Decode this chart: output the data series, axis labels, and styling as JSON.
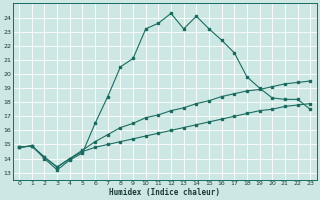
{
  "xlabel": "Humidex (Indice chaleur)",
  "bg_color": "#cde8e4",
  "grid_color": "#b0d4d0",
  "line_color": "#1a6b60",
  "xlim": [
    -0.5,
    23.5
  ],
  "ylim": [
    12.5,
    25.0
  ],
  "xticks": [
    0,
    1,
    2,
    3,
    4,
    5,
    6,
    7,
    8,
    9,
    10,
    11,
    12,
    13,
    14,
    15,
    16,
    17,
    18,
    19,
    20,
    21,
    22,
    23
  ],
  "yticks": [
    13,
    14,
    15,
    16,
    17,
    18,
    19,
    20,
    21,
    22,
    23,
    24
  ],
  "series1_x": [
    0,
    1,
    2,
    3,
    4,
    5,
    6,
    7,
    8,
    9,
    10,
    11,
    12,
    13,
    14,
    15,
    16,
    17,
    18,
    19,
    20,
    21,
    22,
    23
  ],
  "series1_y": [
    14.8,
    14.9,
    14.0,
    13.2,
    13.9,
    14.4,
    16.5,
    18.4,
    20.5,
    21.1,
    23.2,
    23.6,
    24.3,
    23.2,
    24.1,
    23.2,
    22.4,
    21.5,
    19.8,
    19.0,
    18.3,
    18.2,
    18.2,
    17.5
  ],
  "series2_x": [
    0,
    1,
    2,
    3,
    4,
    5,
    6,
    7,
    8,
    9,
    10,
    11,
    12,
    13,
    14,
    15,
    16,
    17,
    18,
    19,
    20,
    21,
    22,
    23
  ],
  "series2_y": [
    14.8,
    14.9,
    14.1,
    13.4,
    14.0,
    14.6,
    15.2,
    15.7,
    16.2,
    16.5,
    16.9,
    17.1,
    17.4,
    17.6,
    17.9,
    18.1,
    18.4,
    18.6,
    18.8,
    18.9,
    19.1,
    19.3,
    19.4,
    19.5
  ],
  "series3_x": [
    0,
    1,
    2,
    3,
    4,
    5,
    6,
    7,
    8,
    9,
    10,
    11,
    12,
    13,
    14,
    15,
    16,
    17,
    18,
    19,
    20,
    21,
    22,
    23
  ],
  "series3_y": [
    14.8,
    14.9,
    14.1,
    13.4,
    14.0,
    14.5,
    14.8,
    15.0,
    15.2,
    15.4,
    15.6,
    15.8,
    16.0,
    16.2,
    16.4,
    16.6,
    16.8,
    17.0,
    17.2,
    17.4,
    17.5,
    17.7,
    17.8,
    17.9
  ]
}
